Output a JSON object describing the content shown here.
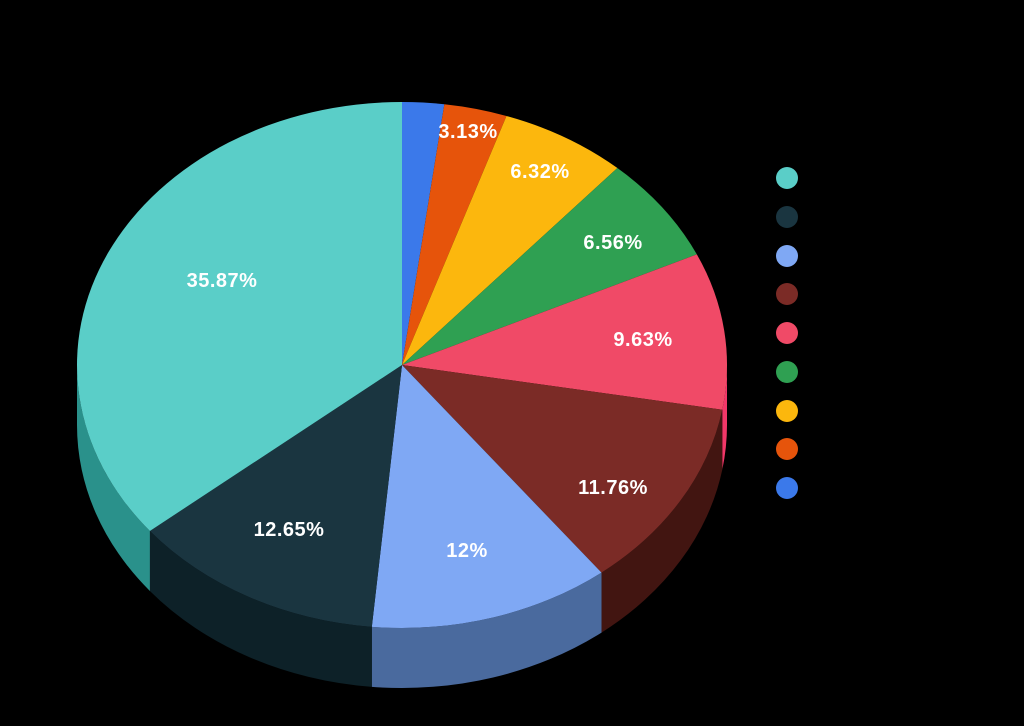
{
  "background_color": "#000000",
  "chart_data": {
    "type": "pie",
    "style": "3d",
    "title": "",
    "unit": "%",
    "start_angle": "12-oclock",
    "direction": "clockwise-ascending-value",
    "label_color": "#FFFFFF",
    "legend_position": "right",
    "legend_labels_visible": false,
    "slices": [
      {
        "value": 35.87,
        "label": "35.87%",
        "color": "#5ACEC8",
        "side_color": "#2A918B"
      },
      {
        "value": 12.65,
        "label": "12.65%",
        "color": "#1A3540",
        "side_color": "#0D2128"
      },
      {
        "value": 12,
        "label": "12%",
        "color": "#7FA8F4",
        "side_color": "#4A6A9E"
      },
      {
        "value": 11.76,
        "label": "11.76%",
        "color": "#7B2B26",
        "side_color": "#421511"
      },
      {
        "value": 9.63,
        "label": "9.63%",
        "color": "#F04A67",
        "side_color": "#F23768"
      },
      {
        "value": 6.56,
        "label": "6.56%",
        "color": "#2FA052"
      },
      {
        "value": 6.32,
        "label": "6.32%",
        "color": "#FCB70D"
      },
      {
        "value": 3.13,
        "label": "3.13%",
        "color": "#E6540B"
      },
      {
        "value": 2.08,
        "label": "",
        "color": "#3B79EA"
      }
    ]
  }
}
